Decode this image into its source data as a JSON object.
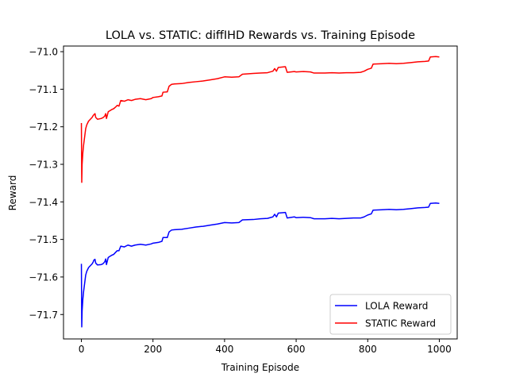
{
  "chart_data": {
    "type": "line",
    "title": "LOLA vs. STATIC: diffIHD Rewards vs. Training Episode",
    "xlabel": "Training Episode",
    "ylabel": "Reward",
    "xlim": [
      -50,
      1050
    ],
    "ylim": [
      -71.765,
      -70.985
    ],
    "x_ticks": [
      0,
      200,
      400,
      600,
      800,
      1000
    ],
    "x_tick_labels": [
      "0",
      "200",
      "400",
      "600",
      "800",
      "1000"
    ],
    "y_ticks": [
      -71.7,
      -71.6,
      -71.5,
      -71.4,
      -71.3,
      -71.2,
      -71.1,
      -71.0
    ],
    "y_tick_labels": [
      "−71.7",
      "−71.6",
      "−71.5",
      "−71.4",
      "−71.3",
      "−71.2",
      "−71.1",
      "−71.0"
    ],
    "grid": false,
    "legend_position": "lower-right",
    "series": [
      {
        "name": "LOLA Reward",
        "color": "#0000ff",
        "points": [
          [
            0,
            -71.565
          ],
          [
            1,
            -71.733
          ],
          [
            2,
            -71.69
          ],
          [
            4,
            -71.66
          ],
          [
            6,
            -71.64
          ],
          [
            8,
            -71.625
          ],
          [
            10,
            -71.61
          ],
          [
            12,
            -71.595
          ],
          [
            15,
            -71.585
          ],
          [
            20,
            -71.575
          ],
          [
            25,
            -71.57
          ],
          [
            30,
            -71.565
          ],
          [
            33,
            -71.56
          ],
          [
            35,
            -71.555
          ],
          [
            38,
            -71.553
          ],
          [
            40,
            -71.563
          ],
          [
            45,
            -71.568
          ],
          [
            55,
            -71.567
          ],
          [
            60,
            -71.565
          ],
          [
            65,
            -71.56
          ],
          [
            68,
            -71.552
          ],
          [
            70,
            -71.567
          ],
          [
            75,
            -71.548
          ],
          [
            80,
            -71.545
          ],
          [
            85,
            -71.542
          ],
          [
            90,
            -71.54
          ],
          [
            95,
            -71.535
          ],
          [
            100,
            -71.53
          ],
          [
            105,
            -71.53
          ],
          [
            110,
            -71.518
          ],
          [
            120,
            -71.52
          ],
          [
            130,
            -71.515
          ],
          [
            140,
            -71.518
          ],
          [
            150,
            -71.515
          ],
          [
            165,
            -71.513
          ],
          [
            180,
            -71.515
          ],
          [
            195,
            -71.512
          ],
          [
            200,
            -71.51
          ],
          [
            215,
            -71.508
          ],
          [
            225,
            -71.505
          ],
          [
            228,
            -71.495
          ],
          [
            240,
            -71.495
          ],
          [
            245,
            -71.48
          ],
          [
            252,
            -71.475
          ],
          [
            260,
            -71.474
          ],
          [
            280,
            -71.473
          ],
          [
            300,
            -71.47
          ],
          [
            320,
            -71.467
          ],
          [
            340,
            -71.465
          ],
          [
            360,
            -71.462
          ],
          [
            380,
            -71.459
          ],
          [
            400,
            -71.455
          ],
          [
            420,
            -71.456
          ],
          [
            440,
            -71.455
          ],
          [
            450,
            -71.448
          ],
          [
            480,
            -71.447
          ],
          [
            500,
            -71.445
          ],
          [
            520,
            -71.444
          ],
          [
            535,
            -71.44
          ],
          [
            540,
            -71.433
          ],
          [
            545,
            -71.44
          ],
          [
            550,
            -71.43
          ],
          [
            570,
            -71.428
          ],
          [
            575,
            -71.443
          ],
          [
            595,
            -71.44
          ],
          [
            600,
            -71.442
          ],
          [
            620,
            -71.441
          ],
          [
            640,
            -71.442
          ],
          [
            650,
            -71.445
          ],
          [
            680,
            -71.445
          ],
          [
            700,
            -71.444
          ],
          [
            720,
            -71.445
          ],
          [
            740,
            -71.444
          ],
          [
            760,
            -71.443
          ],
          [
            780,
            -71.443
          ],
          [
            790,
            -71.44
          ],
          [
            800,
            -71.435
          ],
          [
            810,
            -71.432
          ],
          [
            815,
            -71.422
          ],
          [
            840,
            -71.421
          ],
          [
            860,
            -71.42
          ],
          [
            880,
            -71.421
          ],
          [
            900,
            -71.42
          ],
          [
            920,
            -71.418
          ],
          [
            940,
            -71.416
          ],
          [
            960,
            -71.415
          ],
          [
            970,
            -71.414
          ],
          [
            975,
            -71.404
          ],
          [
            990,
            -71.403
          ],
          [
            1000,
            -71.404
          ]
        ]
      },
      {
        "name": "STATIC Reward",
        "color": "#ff0000",
        "points": [
          [
            0,
            -71.19
          ],
          [
            1,
            -71.348
          ],
          [
            2,
            -71.3
          ],
          [
            4,
            -71.27
          ],
          [
            6,
            -71.25
          ],
          [
            8,
            -71.235
          ],
          [
            10,
            -71.22
          ],
          [
            12,
            -71.205
          ],
          [
            15,
            -71.195
          ],
          [
            20,
            -71.185
          ],
          [
            25,
            -71.18
          ],
          [
            30,
            -71.175
          ],
          [
            33,
            -71.17
          ],
          [
            35,
            -71.168
          ],
          [
            38,
            -71.165
          ],
          [
            40,
            -71.175
          ],
          [
            45,
            -71.18
          ],
          [
            55,
            -71.178
          ],
          [
            60,
            -71.176
          ],
          [
            65,
            -71.172
          ],
          [
            68,
            -71.165
          ],
          [
            70,
            -71.178
          ],
          [
            75,
            -71.16
          ],
          [
            80,
            -71.157
          ],
          [
            85,
            -71.154
          ],
          [
            90,
            -71.152
          ],
          [
            95,
            -71.148
          ],
          [
            100,
            -71.143
          ],
          [
            105,
            -71.145
          ],
          [
            110,
            -71.13
          ],
          [
            120,
            -71.132
          ],
          [
            130,
            -71.128
          ],
          [
            140,
            -71.13
          ],
          [
            150,
            -71.127
          ],
          [
            165,
            -71.125
          ],
          [
            180,
            -71.128
          ],
          [
            195,
            -71.125
          ],
          [
            200,
            -71.122
          ],
          [
            215,
            -71.12
          ],
          [
            225,
            -71.118
          ],
          [
            228,
            -71.108
          ],
          [
            240,
            -71.107
          ],
          [
            245,
            -71.092
          ],
          [
            252,
            -71.087
          ],
          [
            260,
            -71.086
          ],
          [
            280,
            -71.085
          ],
          [
            300,
            -71.082
          ],
          [
            320,
            -71.08
          ],
          [
            340,
            -71.078
          ],
          [
            360,
            -71.075
          ],
          [
            380,
            -71.072
          ],
          [
            400,
            -71.067
          ],
          [
            420,
            -71.068
          ],
          [
            440,
            -71.067
          ],
          [
            450,
            -71.06
          ],
          [
            480,
            -71.058
          ],
          [
            500,
            -71.057
          ],
          [
            520,
            -71.056
          ],
          [
            535,
            -71.052
          ],
          [
            540,
            -71.045
          ],
          [
            545,
            -71.052
          ],
          [
            550,
            -71.042
          ],
          [
            570,
            -71.04
          ],
          [
            575,
            -71.055
          ],
          [
            595,
            -71.053
          ],
          [
            600,
            -71.054
          ],
          [
            620,
            -71.053
          ],
          [
            640,
            -71.054
          ],
          [
            650,
            -71.057
          ],
          [
            680,
            -71.057
          ],
          [
            700,
            -71.056
          ],
          [
            720,
            -71.057
          ],
          [
            740,
            -71.056
          ],
          [
            760,
            -71.056
          ],
          [
            780,
            -71.055
          ],
          [
            790,
            -71.052
          ],
          [
            800,
            -71.047
          ],
          [
            810,
            -71.044
          ],
          [
            815,
            -71.033
          ],
          [
            840,
            -71.032
          ],
          [
            860,
            -71.031
          ],
          [
            880,
            -71.032
          ],
          [
            900,
            -71.031
          ],
          [
            920,
            -71.029
          ],
          [
            940,
            -71.027
          ],
          [
            960,
            -71.026
          ],
          [
            970,
            -71.025
          ],
          [
            975,
            -71.014
          ],
          [
            990,
            -71.013
          ],
          [
            1000,
            -71.014
          ]
        ]
      }
    ]
  }
}
